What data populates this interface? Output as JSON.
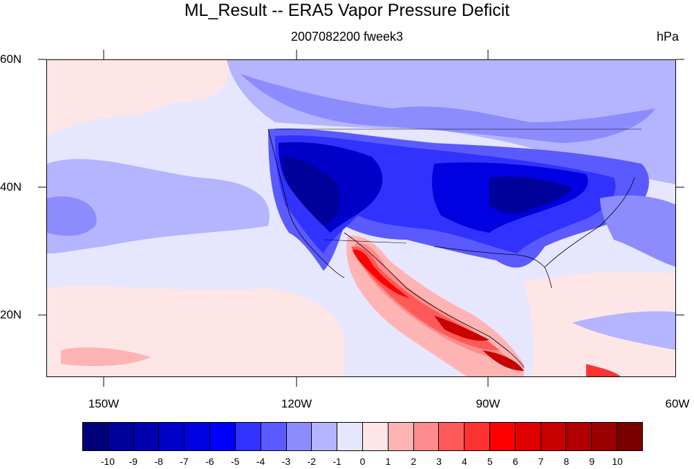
{
  "title": "ML_Result -- ERA5 Vapor Pressure Deficit",
  "subtitle": "2007082200 fweek3",
  "units": "hPa",
  "lat_labels": [
    "60N",
    "40N",
    "20N"
  ],
  "lon_labels": [
    "150W",
    "120W",
    "90W",
    "60W"
  ],
  "colorbar": {
    "labels": [
      "-10",
      "-9",
      "-8",
      "-7",
      "-6",
      "-5",
      "-4",
      "-3",
      "-2",
      "-1",
      "0",
      "1",
      "2",
      "3",
      "4",
      "5",
      "6",
      "7",
      "8",
      "9",
      "10"
    ],
    "colors": [
      "#00007a",
      "#00009a",
      "#0000b0",
      "#0000c8",
      "#0000e0",
      "#0000ff",
      "#3232ff",
      "#5a5aff",
      "#8c8cff",
      "#b4b4ff",
      "#e6e6ff",
      "#ffe6e6",
      "#ffb4b4",
      "#ff8c8c",
      "#ff5a5a",
      "#ff3232",
      "#ff0000",
      "#e00000",
      "#c80000",
      "#b00000",
      "#9a0000",
      "#7a0000"
    ]
  },
  "map": {
    "projection": "cylindrical equidistant",
    "lon_range": [
      -159,
      -60
    ],
    "lat_range": [
      10,
      60
    ]
  }
}
